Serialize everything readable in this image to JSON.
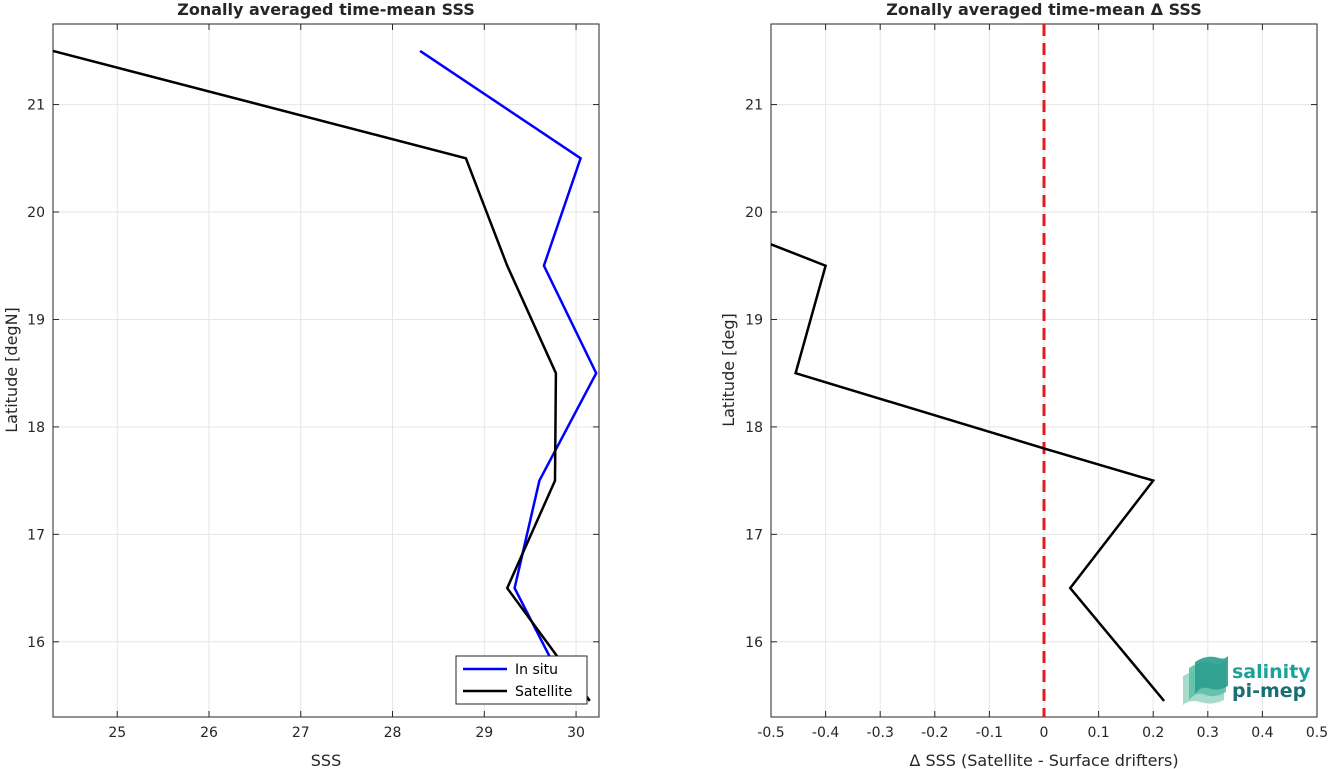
{
  "chart_data": [
    {
      "type": "line",
      "title": "Zonally averaged time-mean SSS",
      "xlabel": "SSS",
      "ylabel": "Latitude [degN]",
      "xlim": [
        24.3,
        30.25
      ],
      "ylim": [
        15.3,
        21.75
      ],
      "xticks": [
        25,
        26,
        27,
        28,
        29,
        30
      ],
      "yticks": [
        16,
        17,
        18,
        19,
        20,
        21
      ],
      "grid": true,
      "legend": "bottom-right",
      "series": [
        {
          "name": "In situ",
          "color": "#0000ff",
          "points": [
            [
              28.3,
              21.5
            ],
            [
              30.05,
              20.5
            ],
            [
              29.65,
              19.5
            ],
            [
              30.22,
              18.5
            ],
            [
              29.6,
              17.5
            ],
            [
              29.33,
              16.5
            ],
            [
              29.75,
              15.8
            ]
          ]
        },
        {
          "name": "Satellite",
          "color": "#000000",
          "points": [
            [
              24.3,
              21.5
            ],
            [
              28.8,
              20.5
            ],
            [
              29.25,
              19.5
            ],
            [
              29.78,
              18.5
            ],
            [
              29.77,
              17.5
            ],
            [
              29.25,
              16.5
            ],
            [
              29.85,
              15.8
            ],
            [
              30.15,
              15.45
            ]
          ]
        }
      ]
    },
    {
      "type": "line",
      "title": "Zonally averaged time-mean Δ SSS",
      "xlabel": "Δ SSS (Satellite - Surface drifters)",
      "ylabel": "Latitude [deg]",
      "xlim": [
        -0.5,
        0.5
      ],
      "ylim": [
        15.3,
        21.75
      ],
      "xticks": [
        -0.5,
        -0.4,
        -0.3,
        -0.2,
        -0.1,
        0,
        0.1,
        0.2,
        0.3,
        0.4,
        0.5
      ],
      "yticks": [
        16,
        17,
        18,
        19,
        20,
        21
      ],
      "grid": true,
      "reference_line": {
        "x": 0,
        "color": "#e41a1c",
        "style": "dashed"
      },
      "series": [
        {
          "color": "#000000",
          "points": [
            [
              -0.5,
              19.7
            ],
            [
              -0.4,
              19.5
            ],
            [
              -0.455,
              18.5
            ],
            [
              0.0,
              17.8
            ],
            [
              0.2,
              17.5
            ],
            [
              0.048,
              16.5
            ],
            [
              0.22,
              15.45
            ]
          ]
        }
      ]
    }
  ],
  "logo": {
    "line1": "salinity",
    "line2": "pi-mep"
  }
}
